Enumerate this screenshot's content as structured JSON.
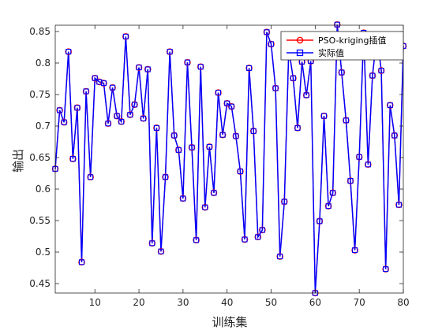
{
  "chart_data": {
    "type": "line",
    "xlabel": "训练集",
    "ylabel": "输出",
    "xlim": [
      1,
      80
    ],
    "ylim": [
      0.435,
      0.86
    ],
    "xticks": [
      10,
      20,
      30,
      40,
      50,
      60,
      70,
      80
    ],
    "yticks": [
      0.45,
      0.5,
      0.55,
      0.6,
      0.65,
      0.7,
      0.75,
      0.8,
      0.85
    ],
    "grid": false,
    "legend_position": "top-right",
    "x": [
      1,
      2,
      3,
      4,
      5,
      6,
      7,
      8,
      9,
      10,
      11,
      12,
      13,
      14,
      15,
      16,
      17,
      18,
      19,
      20,
      21,
      22,
      23,
      24,
      25,
      26,
      27,
      28,
      29,
      30,
      31,
      32,
      33,
      34,
      35,
      36,
      37,
      38,
      39,
      40,
      41,
      42,
      43,
      44,
      45,
      46,
      47,
      48,
      49,
      50,
      51,
      52,
      53,
      54,
      55,
      56,
      57,
      58,
      59,
      60,
      61,
      62,
      63,
      64,
      65,
      66,
      67,
      68,
      69,
      70,
      71,
      72,
      73,
      74,
      75,
      76,
      77,
      78,
      79,
      80
    ],
    "series": [
      {
        "name": "PSO-kriging插值",
        "color": "#ff0000",
        "marker": "circle",
        "values": [
          0.632,
          0.725,
          0.706,
          0.818,
          0.648,
          0.729,
          0.484,
          0.755,
          0.619,
          0.776,
          0.77,
          0.768,
          0.704,
          0.761,
          0.716,
          0.707,
          0.842,
          0.718,
          0.734,
          0.793,
          0.712,
          0.79,
          0.514,
          0.697,
          0.501,
          0.619,
          0.818,
          0.685,
          0.662,
          0.585,
          0.801,
          0.666,
          0.519,
          0.794,
          0.571,
          0.667,
          0.594,
          0.753,
          0.686,
          0.736,
          0.731,
          0.684,
          0.628,
          0.52,
          0.792,
          0.692,
          0.524,
          0.535,
          0.849,
          0.83,
          0.76,
          0.493,
          0.58,
          0.822,
          0.776,
          0.697,
          0.802,
          0.749,
          0.803,
          0.435,
          0.549,
          0.716,
          0.573,
          0.594,
          0.861,
          0.785,
          0.709,
          0.613,
          0.503,
          0.651,
          0.848,
          0.639,
          0.78,
          0.843,
          0.788,
          0.473,
          0.733,
          0.685,
          0.575,
          0.827
        ]
      },
      {
        "name": "实际值",
        "color": "#0000ff",
        "marker": "square",
        "values": [
          0.632,
          0.725,
          0.706,
          0.818,
          0.648,
          0.729,
          0.484,
          0.755,
          0.619,
          0.776,
          0.77,
          0.768,
          0.704,
          0.761,
          0.716,
          0.707,
          0.842,
          0.718,
          0.734,
          0.793,
          0.712,
          0.79,
          0.514,
          0.697,
          0.501,
          0.619,
          0.818,
          0.685,
          0.662,
          0.585,
          0.801,
          0.666,
          0.519,
          0.794,
          0.571,
          0.667,
          0.594,
          0.753,
          0.686,
          0.736,
          0.731,
          0.684,
          0.628,
          0.52,
          0.792,
          0.692,
          0.524,
          0.535,
          0.849,
          0.83,
          0.76,
          0.493,
          0.58,
          0.822,
          0.776,
          0.697,
          0.802,
          0.749,
          0.803,
          0.435,
          0.549,
          0.716,
          0.573,
          0.594,
          0.861,
          0.785,
          0.709,
          0.613,
          0.503,
          0.651,
          0.848,
          0.639,
          0.78,
          0.843,
          0.788,
          0.473,
          0.733,
          0.685,
          0.575,
          0.827
        ]
      }
    ]
  }
}
